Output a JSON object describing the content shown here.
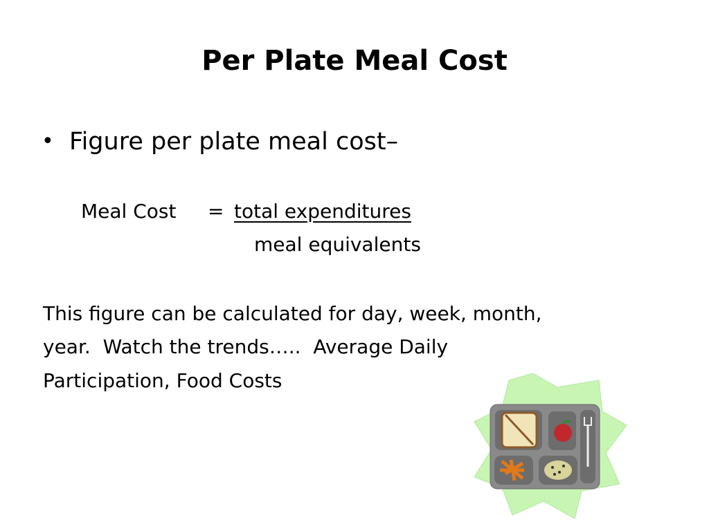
{
  "slide": {
    "title": "Per Plate Meal Cost",
    "bullet": "Figure per plate meal cost–",
    "formula": {
      "left": "Meal Cost",
      "equals": "=",
      "numerator": "total expenditures",
      "denominator": "meal equivalents"
    },
    "paragraph_lines": [
      "This figure can be calculated for day, week, month,",
      "year.  Watch the trends…..  Average Daily",
      "Participation, Food Costs"
    ]
  }
}
